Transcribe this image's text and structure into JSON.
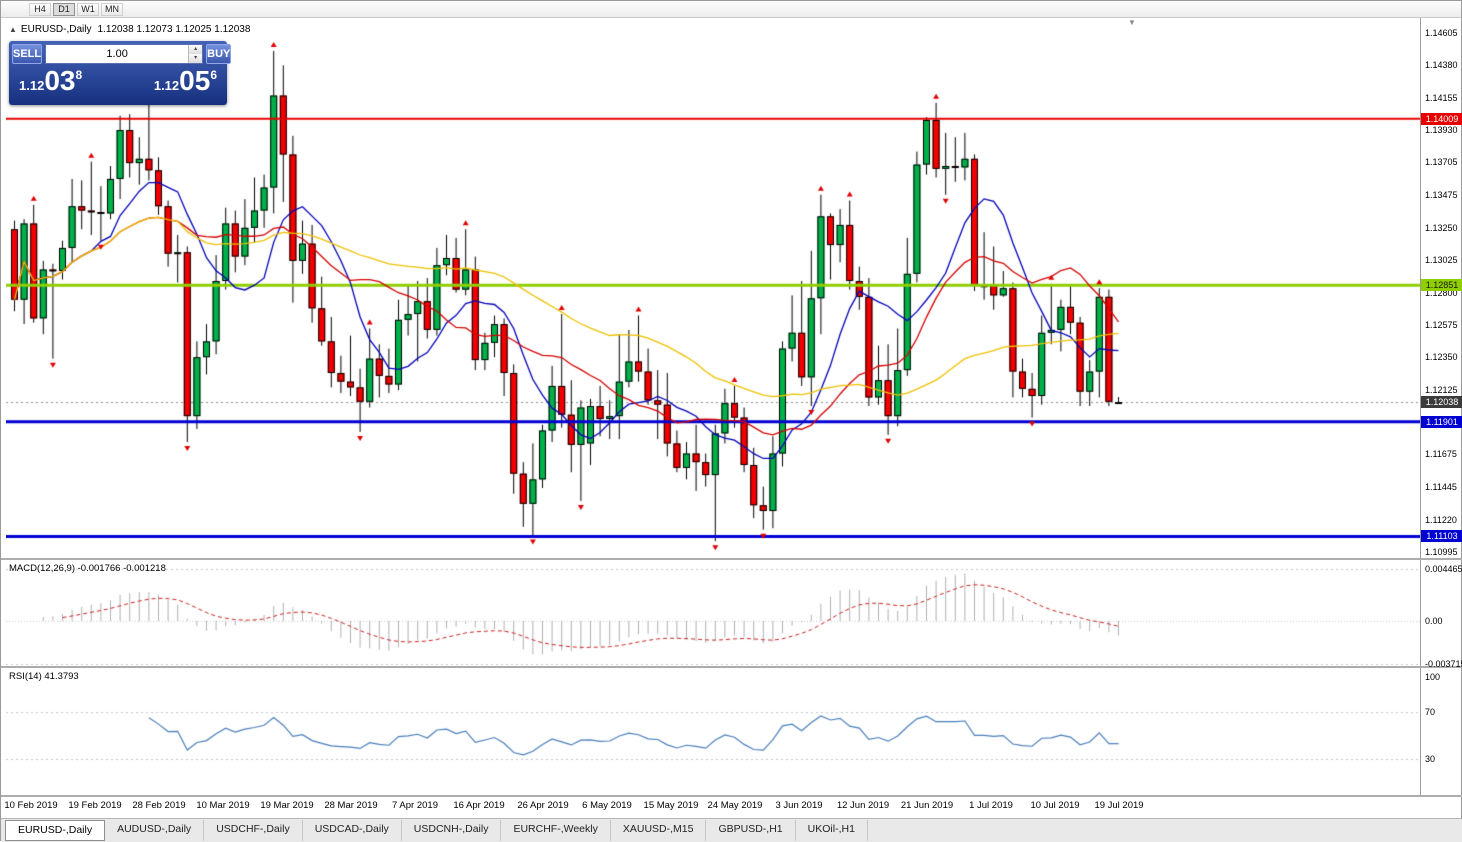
{
  "toolbar": {
    "periods": [
      "H4",
      "D1",
      "W1",
      "MN"
    ],
    "active_period": "D1"
  },
  "chart": {
    "collapse_arrow": "▲",
    "title": "EURUSD-,Daily",
    "ohlc": "1.12038 1.12073 1.12025 1.12038",
    "shift_marker": "▼"
  },
  "trade_panel": {
    "sell_label": "SELL",
    "buy_label": "BUY",
    "volume": "1.00",
    "sell_price": {
      "prefix": "1.12",
      "big": "03",
      "sup": "8"
    },
    "buy_price": {
      "prefix": "1.12",
      "big": "05",
      "sup": "6"
    }
  },
  "price_axis": {
    "labels": [
      "1.14605",
      "1.14380",
      "1.14155",
      "1.13930",
      "1.13705",
      "1.13475",
      "1.13250",
      "1.13025",
      "1.12800",
      "1.12575",
      "1.12350",
      "1.12125",
      "1.11675",
      "1.11445",
      "1.11220",
      "1.10995"
    ],
    "badges": [
      {
        "name": "resistance-price-badge",
        "text": "1.14009",
        "value": 1.14009,
        "bg": "#e60000",
        "fg": "#ffffff"
      },
      {
        "name": "green-level-price-badge",
        "text": "1.12851",
        "value": 1.12851,
        "bg": "#8fce00",
        "fg": "#1a1a00"
      },
      {
        "name": "current-price-badge",
        "text": "1.12038",
        "value": 1.12038,
        "bg": "#3b3b3b",
        "fg": "#ffffff"
      },
      {
        "name": "support1-price-badge",
        "text": "1.11901",
        "value": 1.11901,
        "bg": "#0000d2",
        "fg": "#ffffff"
      },
      {
        "name": "support2-price-badge",
        "text": "1.11103",
        "value": 1.11103,
        "bg": "#0000d2",
        "fg": "#ffffff"
      }
    ]
  },
  "indicators": {
    "macd": {
      "label": "MACD(12,26,9)",
      "values": "-0.001766 -0.001218",
      "axis": [
        "0.004465",
        "0.00",
        "-0.003715"
      ]
    },
    "rsi": {
      "label": "RSI(14)",
      "value": "41.3793",
      "axis": [
        "100",
        "70",
        "30"
      ]
    }
  },
  "date_axis": [
    "10 Feb 2019",
    "19 Feb 2019",
    "28 Feb 2019",
    "10 Mar 2019",
    "19 Mar 2019",
    "28 Mar 2019",
    "7 Apr 2019",
    "16 Apr 2019",
    "26 Apr 2019",
    "6 May 2019",
    "15 May 2019",
    "24 May 2019",
    "3 Jun 2019",
    "12 Jun 2019",
    "21 Jun 2019",
    "1 Jul 2019",
    "10 Jul 2019",
    "19 Jul 2019"
  ],
  "tabs": {
    "active": "EURUSD-,Daily",
    "items": [
      "EURUSD-,Daily",
      "AUDUSD-,Daily",
      "USDCHF-,Daily",
      "USDCAD-,Daily",
      "USDCNH-,Daily",
      "EURCHF-,Weekly",
      "XAUUSD-,M15",
      "GBPUSD-,H1",
      "UKOil-,H1"
    ]
  },
  "chart_data": {
    "type": "candlestick",
    "symbol": "EURUSD-",
    "timeframe": "Daily",
    "ylim": [
      1.10995,
      1.14605
    ],
    "bull_color": "#00b14a",
    "bear_color": "#f40000",
    "wick_color": "#000000",
    "current_price": 1.12038,
    "fractal_color": "#e00000",
    "h_lines": [
      {
        "value": 1.14009,
        "color": "#e60000",
        "width": 2
      },
      {
        "value": 1.12851,
        "color": "#8fce00",
        "width": 3
      },
      {
        "value": 1.11901,
        "color": "#0000d2",
        "width": 3
      },
      {
        "value": 1.11103,
        "color": "#0000d2",
        "width": 3
      }
    ],
    "moving_averages": [
      {
        "name": "fast",
        "period": 9,
        "color": "#0000b8"
      },
      {
        "name": "medium",
        "period": 18,
        "color": "#d40000"
      },
      {
        "name": "slow",
        "period": 45,
        "color": "#efc000"
      }
    ],
    "macd": {
      "fast": 12,
      "slow": 26,
      "signal": 9,
      "scale_max": 0.004465,
      "scale_min": -0.003715,
      "histogram_color": "#b0b0b0",
      "signal_color": "#cc2222"
    },
    "rsi": {
      "period": 14,
      "color": "#4a7ebb",
      "levels": [
        70,
        30
      ]
    },
    "candles": [
      [
        1.1324,
        1.133,
        1.1267,
        1.1275
      ],
      [
        1.1275,
        1.1331,
        1.1258,
        1.1328
      ],
      [
        1.1328,
        1.1341,
        1.1259,
        1.1262
      ],
      [
        1.1262,
        1.1302,
        1.1251,
        1.1296
      ],
      [
        1.1296,
        1.13,
        1.1234,
        1.1295
      ],
      [
        1.1295,
        1.1316,
        1.1289,
        1.1311
      ],
      [
        1.1311,
        1.1359,
        1.1301,
        1.134
      ],
      [
        1.134,
        1.1358,
        1.1324,
        1.1337
      ],
      [
        1.1337,
        1.1371,
        1.132,
        1.1336
      ],
      [
        1.1336,
        1.1354,
        1.1316,
        1.1335
      ],
      [
        1.1335,
        1.1368,
        1.1331,
        1.1359
      ],
      [
        1.1359,
        1.1403,
        1.1345,
        1.1393
      ],
      [
        1.1393,
        1.1404,
        1.136,
        1.137
      ],
      [
        1.137,
        1.1388,
        1.1355,
        1.1373
      ],
      [
        1.1373,
        1.1411,
        1.1358,
        1.1365
      ],
      [
        1.1365,
        1.1374,
        1.1334,
        1.134
      ],
      [
        1.134,
        1.1344,
        1.1298,
        1.1307
      ],
      [
        1.1307,
        1.132,
        1.1287,
        1.1308
      ],
      [
        1.1308,
        1.1312,
        1.1176,
        1.1194
      ],
      [
        1.1194,
        1.1246,
        1.1185,
        1.1235
      ],
      [
        1.1235,
        1.1258,
        1.1223,
        1.1246
      ],
      [
        1.1246,
        1.1306,
        1.1237,
        1.1288
      ],
      [
        1.1288,
        1.1339,
        1.1282,
        1.1328
      ],
      [
        1.1328,
        1.1337,
        1.1294,
        1.1305
      ],
      [
        1.1305,
        1.1345,
        1.1299,
        1.1325
      ],
      [
        1.1325,
        1.136,
        1.1315,
        1.1337
      ],
      [
        1.1337,
        1.1362,
        1.1325,
        1.1353
      ],
      [
        1.1353,
        1.1448,
        1.1335,
        1.1417
      ],
      [
        1.1417,
        1.1438,
        1.1343,
        1.1376
      ],
      [
        1.1376,
        1.1389,
        1.1273,
        1.1302
      ],
      [
        1.1302,
        1.133,
        1.1293,
        1.1314
      ],
      [
        1.1314,
        1.1327,
        1.1259,
        1.1269
      ],
      [
        1.1269,
        1.1291,
        1.1243,
        1.1246
      ],
      [
        1.1246,
        1.1263,
        1.1214,
        1.1224
      ],
      [
        1.1224,
        1.1236,
        1.121,
        1.1218
      ],
      [
        1.1218,
        1.125,
        1.1208,
        1.1214
      ],
      [
        1.1214,
        1.1227,
        1.1183,
        1.1204
      ],
      [
        1.1204,
        1.1255,
        1.12,
        1.1234
      ],
      [
        1.1234,
        1.1244,
        1.1207,
        1.1222
      ],
      [
        1.1222,
        1.1241,
        1.121,
        1.1216
      ],
      [
        1.1216,
        1.1275,
        1.1212,
        1.1261
      ],
      [
        1.1261,
        1.1285,
        1.125,
        1.1265
      ],
      [
        1.1265,
        1.1288,
        1.1232,
        1.1274
      ],
      [
        1.1274,
        1.129,
        1.1248,
        1.1254
      ],
      [
        1.1254,
        1.1311,
        1.125,
        1.1299
      ],
      [
        1.1299,
        1.132,
        1.1292,
        1.1304
      ],
      [
        1.1304,
        1.1318,
        1.128,
        1.1282
      ],
      [
        1.1282,
        1.1324,
        1.1278,
        1.1296
      ],
      [
        1.1296,
        1.1305,
        1.1226,
        1.1233
      ],
      [
        1.1233,
        1.1252,
        1.1226,
        1.1245
      ],
      [
        1.1245,
        1.1264,
        1.1235,
        1.1258
      ],
      [
        1.1258,
        1.1262,
        1.1208,
        1.1224
      ],
      [
        1.1224,
        1.123,
        1.114,
        1.1154
      ],
      [
        1.1154,
        1.1162,
        1.1117,
        1.1133
      ],
      [
        1.1133,
        1.1175,
        1.1111,
        1.115
      ],
      [
        1.115,
        1.1188,
        1.1144,
        1.1184
      ],
      [
        1.1184,
        1.1229,
        1.1176,
        1.1215
      ],
      [
        1.1215,
        1.1265,
        1.1186,
        1.1195
      ],
      [
        1.1195,
        1.1219,
        1.1155,
        1.1174
      ],
      [
        1.1174,
        1.1205,
        1.1135,
        1.12
      ],
      [
        1.1175,
        1.1206,
        1.116,
        1.1201
      ],
      [
        1.1201,
        1.1215,
        1.118,
        1.1192
      ],
      [
        1.1192,
        1.1205,
        1.1178,
        1.1194
      ],
      [
        1.1194,
        1.1251,
        1.1178,
        1.1218
      ],
      [
        1.1218,
        1.1254,
        1.1214,
        1.1232
      ],
      [
        1.1232,
        1.1264,
        1.1218,
        1.1225
      ],
      [
        1.1225,
        1.1241,
        1.1202,
        1.1205
      ],
      [
        1.1205,
        1.1226,
        1.1178,
        1.1202
      ],
      [
        1.1202,
        1.1224,
        1.1166,
        1.1175
      ],
      [
        1.1175,
        1.1184,
        1.1155,
        1.1158
      ],
      [
        1.1158,
        1.1176,
        1.115,
        1.1168
      ],
      [
        1.1168,
        1.1188,
        1.1142,
        1.1162
      ],
      [
        1.1162,
        1.1168,
        1.1145,
        1.1153
      ],
      [
        1.1153,
        1.1188,
        1.1107,
        1.1182
      ],
      [
        1.1182,
        1.1213,
        1.1175,
        1.1203
      ],
      [
        1.1203,
        1.1215,
        1.1186,
        1.1193
      ],
      [
        1.1193,
        1.12,
        1.1155,
        1.116
      ],
      [
        1.116,
        1.1172,
        1.1123,
        1.1132
      ],
      [
        1.1132,
        1.1145,
        1.1115,
        1.1128
      ],
      [
        1.1128,
        1.118,
        1.1116,
        1.1168
      ],
      [
        1.1168,
        1.1246,
        1.1159,
        1.1241
      ],
      [
        1.1241,
        1.1278,
        1.1232,
        1.1252
      ],
      [
        1.1252,
        1.1288,
        1.1215,
        1.1221
      ],
      [
        1.1221,
        1.1309,
        1.1201,
        1.1276
      ],
      [
        1.1276,
        1.1348,
        1.1251,
        1.1333
      ],
      [
        1.1333,
        1.1335,
        1.1289,
        1.1313
      ],
      [
        1.1313,
        1.1338,
        1.1301,
        1.1327
      ],
      [
        1.1327,
        1.1344,
        1.1282,
        1.1288
      ],
      [
        1.1288,
        1.1298,
        1.1268,
        1.1277
      ],
      [
        1.1277,
        1.129,
        1.1201,
        1.1207
      ],
      [
        1.1207,
        1.1243,
        1.1202,
        1.1219
      ],
      [
        1.1219,
        1.1244,
        1.1181,
        1.1194
      ],
      [
        1.1194,
        1.1255,
        1.1187,
        1.1226
      ],
      [
        1.1226,
        1.1318,
        1.1222,
        1.1293
      ],
      [
        1.1293,
        1.1378,
        1.1287,
        1.1369
      ],
      [
        1.1369,
        1.1402,
        1.1362,
        1.14
      ],
      [
        1.14,
        1.1412,
        1.136,
        1.1366
      ],
      [
        1.1366,
        1.1391,
        1.1348,
        1.1368
      ],
      [
        1.1368,
        1.1388,
        1.1357,
        1.1367
      ],
      [
        1.1367,
        1.1391,
        1.1358,
        1.1373
      ],
      [
        1.1373,
        1.1376,
        1.1281,
        1.1285
      ],
      [
        1.1285,
        1.1322,
        1.1275,
        1.1285
      ],
      [
        1.1285,
        1.1312,
        1.1268,
        1.1278
      ],
      [
        1.1278,
        1.1295,
        1.1277,
        1.1283
      ],
      [
        1.1283,
        1.1287,
        1.1207,
        1.1225
      ],
      [
        1.1225,
        1.1234,
        1.1207,
        1.1213
      ],
      [
        1.1213,
        1.1224,
        1.1193,
        1.1208
      ],
      [
        1.1208,
        1.1264,
        1.1202,
        1.1252
      ],
      [
        1.1252,
        1.1286,
        1.1244,
        1.1254
      ],
      [
        1.1254,
        1.1275,
        1.1239,
        1.127
      ],
      [
        1.127,
        1.1285,
        1.1251,
        1.1259
      ],
      [
        1.1259,
        1.1263,
        1.1201,
        1.1211
      ],
      [
        1.1211,
        1.1233,
        1.1201,
        1.1225
      ],
      [
        1.1225,
        1.1283,
        1.1207,
        1.1277
      ],
      [
        1.1277,
        1.1282,
        1.1201,
        1.1204
      ],
      [
        1.12038,
        1.12073,
        1.12025,
        1.12038
      ]
    ]
  }
}
